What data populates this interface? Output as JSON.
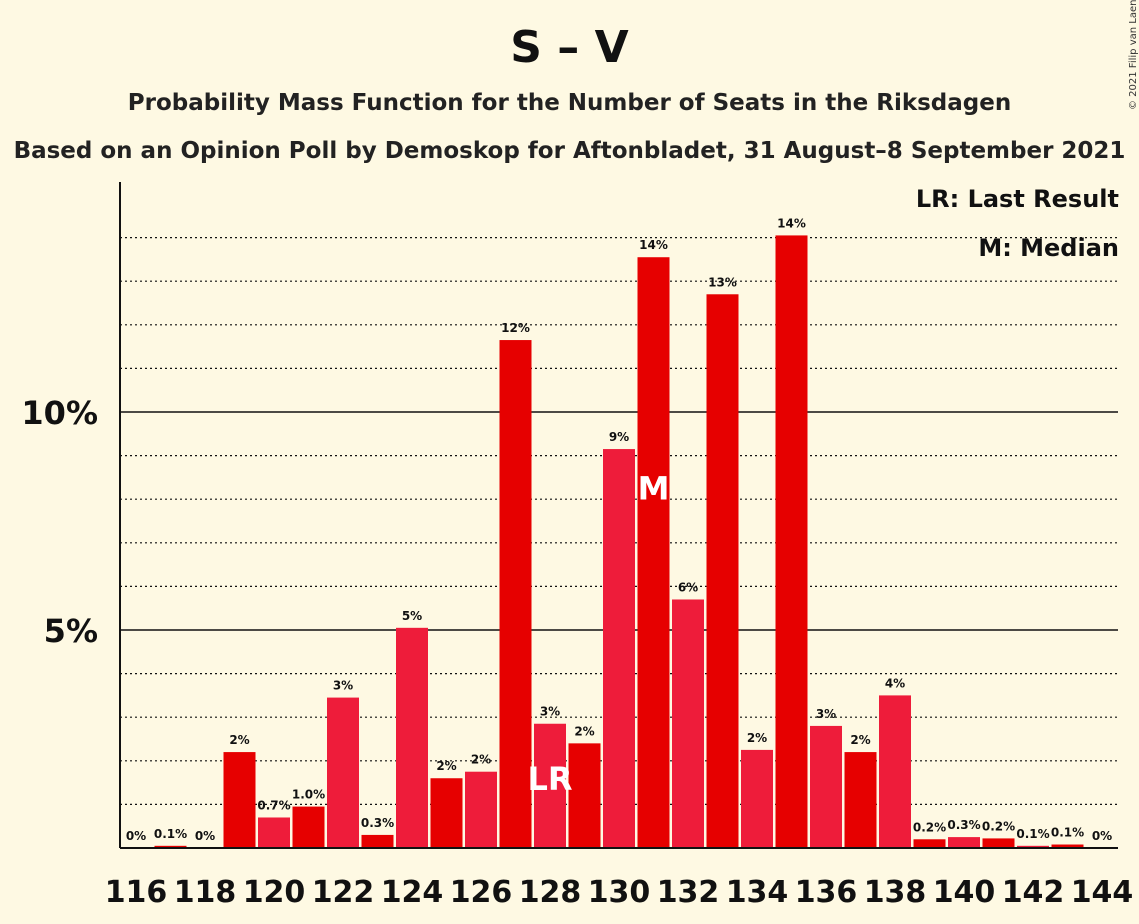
{
  "header": {
    "title": "S – V",
    "subtitle": "Probability Mass Function for the Number of Seats in the Riksdagen",
    "subtitle2": "Based on an Opinion Poll by Demoskop for Aftonbladet, 31 August–8 September 2021",
    "copyright": "© 2021 Filip van Laenen"
  },
  "legend": {
    "last_result": "LR: Last Result",
    "median": "M: Median"
  },
  "colors": {
    "background": "#fef9e3",
    "bar_primary": "#e60000",
    "bar_secondary": "#ee1c3a",
    "text": "#111111"
  },
  "chart_data": {
    "type": "bar",
    "categories": [
      116,
      117,
      118,
      119,
      120,
      121,
      122,
      123,
      124,
      125,
      126,
      127,
      128,
      129,
      130,
      131,
      132,
      133,
      134,
      135,
      136,
      137,
      138,
      139,
      140,
      141,
      142,
      143,
      144
    ],
    "values": [
      0,
      0.05,
      0,
      2.2,
      0.7,
      0.95,
      3.45,
      0.3,
      5.05,
      1.6,
      1.75,
      11.65,
      2.85,
      2.4,
      9.15,
      13.55,
      5.7,
      12.7,
      2.25,
      14.05,
      2.8,
      2.2,
      3.5,
      0.2,
      0.25,
      0.22,
      0.05,
      0.08,
      0
    ],
    "labels": [
      "0%",
      "0.1%",
      "0%",
      "2%",
      "0.7%",
      "1.0%",
      "3%",
      "0.3%",
      "5%",
      "2%",
      "2%",
      "12%",
      "3%",
      "2%",
      "9%",
      "14%",
      "6%",
      "13%",
      "2%",
      "14%",
      "3%",
      "2%",
      "4%",
      "0.2%",
      "0.3%",
      "0.2%",
      "0.1%",
      "0.1%",
      "0%"
    ],
    "xticks": [
      "116",
      "118",
      "120",
      "122",
      "124",
      "126",
      "128",
      "130",
      "132",
      "134",
      "136",
      "138",
      "140",
      "142",
      "144"
    ],
    "yticks": [
      {
        "value": 5,
        "label": "5%"
      },
      {
        "value": 10,
        "label": "10%"
      }
    ],
    "ylim": [
      0,
      15.3
    ],
    "grid": true,
    "last_result": {
      "seat": 128,
      "marker": "LR"
    },
    "median": {
      "seat": 131,
      "marker": "M"
    }
  }
}
